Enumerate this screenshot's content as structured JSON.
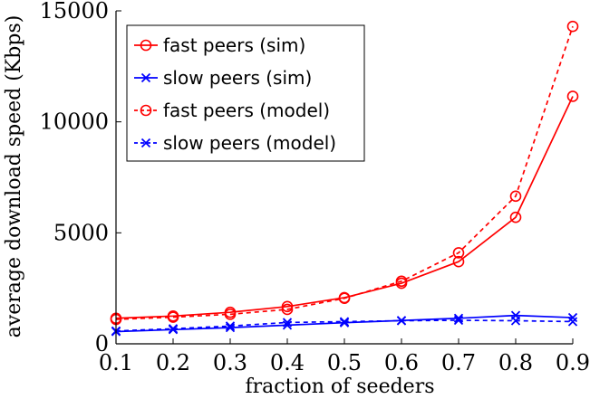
{
  "chart_data": {
    "type": "line",
    "title": "",
    "xlabel": "fraction of seeders",
    "ylabel": "average download speed (Kbps)",
    "x": [
      0.1,
      0.2,
      0.3,
      0.4,
      0.5,
      0.6,
      0.7,
      0.8,
      0.9
    ],
    "xlim": [
      0.1,
      0.9
    ],
    "ylim": [
      0,
      15000
    ],
    "xticks": [
      "0.1",
      "0.2",
      "0.3",
      "0.4",
      "0.5",
      "0.6",
      "0.7",
      "0.8",
      "0.9"
    ],
    "yticks": [
      "0",
      "5000",
      "10000",
      "15000"
    ],
    "grid": false,
    "legend_position": "top-left",
    "series": [
      {
        "name": "fast peers (sim)",
        "color": "#ff0000",
        "marker": "circle",
        "dash": "solid",
        "values": [
          1150,
          1250,
          1420,
          1680,
          2080,
          2730,
          3700,
          5700,
          11150
        ]
      },
      {
        "name": "slow peers (sim)",
        "color": "#0000ff",
        "marker": "x",
        "dash": "solid",
        "values": [
          550,
          640,
          730,
          840,
          950,
          1050,
          1150,
          1280,
          1180
        ]
      },
      {
        "name": "fast peers (model)",
        "color": "#ff0000",
        "marker": "circle",
        "dash": "dashed",
        "values": [
          1100,
          1200,
          1330,
          1550,
          2050,
          2820,
          4100,
          6650,
          14300
        ]
      },
      {
        "name": "slow peers (model)",
        "color": "#0000ff",
        "marker": "x",
        "dash": "dashed",
        "values": [
          580,
          680,
          800,
          960,
          1000,
          1040,
          1060,
          1040,
          1000
        ]
      }
    ]
  }
}
